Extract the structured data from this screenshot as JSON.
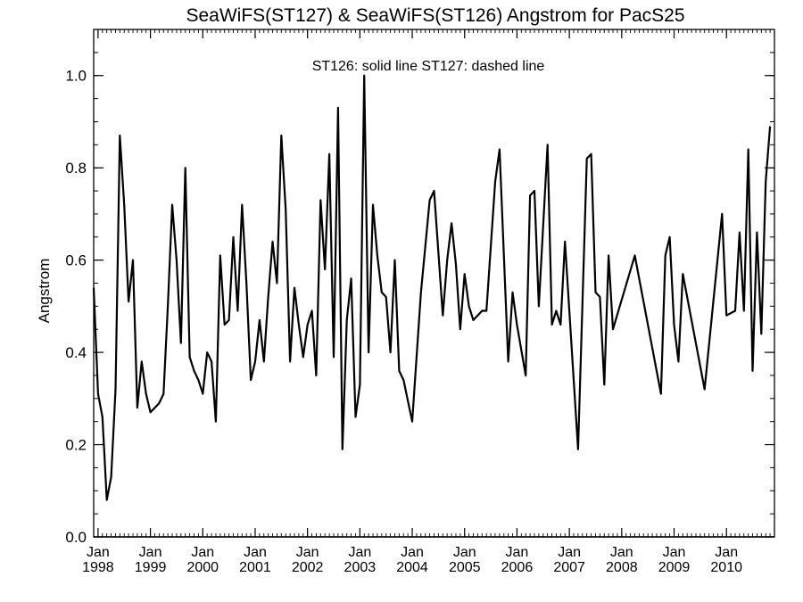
{
  "chart_data": {
    "type": "line",
    "title": "SeaWiFS(ST127) & SeaWiFS(ST126)  Angstrom for PacS25",
    "annotation": "ST126: solid line   ST127: dashed line",
    "xlabel": "",
    "ylabel": "Angstrom",
    "ylim": [
      0.0,
      1.1
    ],
    "y_ticks": [
      "0.0",
      "0.2",
      "0.4",
      "0.6",
      "0.8",
      "1.0"
    ],
    "x_ticks": [
      {
        "month": "Jan",
        "year": "1998"
      },
      {
        "month": "Jan",
        "year": "1999"
      },
      {
        "month": "Jan",
        "year": "2000"
      },
      {
        "month": "Jan",
        "year": "2001"
      },
      {
        "month": "Jan",
        "year": "2002"
      },
      {
        "month": "Jan",
        "year": "2003"
      },
      {
        "month": "Jan",
        "year": "2004"
      },
      {
        "month": "Jan",
        "year": "2005"
      },
      {
        "month": "Jan",
        "year": "2006"
      },
      {
        "month": "Jan",
        "year": "2007"
      },
      {
        "month": "Jan",
        "year": "2008"
      },
      {
        "month": "Jan",
        "year": "2009"
      },
      {
        "month": "Jan",
        "year": "2010"
      }
    ],
    "grid": false,
    "series": [
      {
        "name": "ST126",
        "style": "solid",
        "color": "#000000",
        "points": [
          [
            "1997-12-01",
            0.54
          ],
          [
            "1998-01-01",
            0.31
          ],
          [
            "1998-02-01",
            0.26
          ],
          [
            "1998-03-01",
            0.08
          ],
          [
            "1998-04-01",
            0.13
          ],
          [
            "1998-05-01",
            0.32
          ],
          [
            "1998-06-01",
            0.87
          ],
          [
            "1998-07-01",
            0.72
          ],
          [
            "1998-08-01",
            0.51
          ],
          [
            "1998-09-01",
            0.6
          ],
          [
            "1998-10-01",
            0.28
          ],
          [
            "1998-11-01",
            0.38
          ],
          [
            "1998-12-01",
            0.31
          ],
          [
            "1999-01-01",
            0.27
          ],
          [
            "1999-02-01",
            0.28
          ],
          [
            "1999-03-01",
            0.29
          ],
          [
            "1999-04-01",
            0.31
          ],
          [
            "1999-05-01",
            0.5
          ],
          [
            "1999-06-01",
            0.72
          ],
          [
            "1999-07-01",
            0.6
          ],
          [
            "1999-08-01",
            0.42
          ],
          [
            "1999-09-01",
            0.8
          ],
          [
            "1999-10-01",
            0.39
          ],
          [
            "1999-11-01",
            0.36
          ],
          [
            "1999-12-01",
            0.34
          ],
          [
            "2000-01-01",
            0.31
          ],
          [
            "2000-02-01",
            0.4
          ],
          [
            "2000-03-01",
            0.38
          ],
          [
            "2000-04-01",
            0.25
          ],
          [
            "2000-05-01",
            0.61
          ],
          [
            "2000-06-01",
            0.46
          ],
          [
            "2000-07-01",
            0.47
          ],
          [
            "2000-08-01",
            0.65
          ],
          [
            "2000-09-01",
            0.49
          ],
          [
            "2000-10-01",
            0.72
          ],
          [
            "2000-11-01",
            0.55
          ],
          [
            "2000-12-01",
            0.34
          ],
          [
            "2001-01-01",
            0.38
          ],
          [
            "2001-02-01",
            0.47
          ],
          [
            "2001-03-01",
            0.38
          ],
          [
            "2001-04-01",
            0.52
          ],
          [
            "2001-05-01",
            0.64
          ],
          [
            "2001-06-01",
            0.55
          ],
          [
            "2001-07-01",
            0.87
          ],
          [
            "2001-08-01",
            0.71
          ],
          [
            "2001-09-01",
            0.38
          ],
          [
            "2001-10-01",
            0.54
          ],
          [
            "2001-11-01",
            0.46
          ],
          [
            "2001-12-01",
            0.39
          ],
          [
            "2002-01-01",
            0.46
          ],
          [
            "2002-02-01",
            0.49
          ],
          [
            "2002-03-01",
            0.35
          ],
          [
            "2002-04-01",
            0.73
          ],
          [
            "2002-05-01",
            0.58
          ],
          [
            "2002-06-01",
            0.83
          ],
          [
            "2002-07-01",
            0.39
          ],
          [
            "2002-08-01",
            0.93
          ],
          [
            "2002-09-01",
            0.19
          ],
          [
            "2002-10-01",
            0.47
          ],
          [
            "2002-11-01",
            0.56
          ],
          [
            "2002-12-01",
            0.26
          ],
          [
            "2003-01-01",
            0.33
          ],
          [
            "2003-02-01",
            1.0
          ],
          [
            "2003-03-01",
            0.4
          ],
          [
            "2003-04-01",
            0.72
          ],
          [
            "2003-05-01",
            0.61
          ],
          [
            "2003-06-01",
            0.53
          ],
          [
            "2003-07-01",
            0.52
          ],
          [
            "2003-08-01",
            0.4
          ],
          [
            "2003-09-01",
            0.6
          ],
          [
            "2003-10-01",
            0.36
          ],
          [
            "2003-11-01",
            0.34
          ],
          [
            "2004-01-01",
            0.25
          ],
          [
            "2004-03-01",
            0.53
          ],
          [
            "2004-05-01",
            0.73
          ],
          [
            "2004-06-01",
            0.75
          ],
          [
            "2004-08-01",
            0.48
          ],
          [
            "2004-09-01",
            0.6
          ],
          [
            "2004-10-01",
            0.68
          ],
          [
            "2004-11-01",
            0.59
          ],
          [
            "2004-12-01",
            0.45
          ],
          [
            "2005-01-01",
            0.57
          ],
          [
            "2005-02-01",
            0.5
          ],
          [
            "2005-03-01",
            0.47
          ],
          [
            "2005-05-01",
            0.49
          ],
          [
            "2005-06-01",
            0.49
          ],
          [
            "2005-08-01",
            0.77
          ],
          [
            "2005-09-01",
            0.84
          ],
          [
            "2005-11-01",
            0.38
          ],
          [
            "2005-12-01",
            0.53
          ],
          [
            "2006-01-01",
            0.46
          ],
          [
            "2006-03-01",
            0.35
          ],
          [
            "2006-04-01",
            0.74
          ],
          [
            "2006-05-01",
            0.75
          ],
          [
            "2006-06-01",
            0.5
          ],
          [
            "2006-08-01",
            0.85
          ],
          [
            "2006-09-01",
            0.46
          ],
          [
            "2006-10-01",
            0.49
          ],
          [
            "2006-11-01",
            0.46
          ],
          [
            "2006-12-01",
            0.64
          ],
          [
            "2007-03-01",
            0.19
          ],
          [
            "2007-05-01",
            0.82
          ],
          [
            "2007-06-01",
            0.83
          ],
          [
            "2007-07-01",
            0.53
          ],
          [
            "2007-08-01",
            0.52
          ],
          [
            "2007-09-01",
            0.33
          ],
          [
            "2007-10-01",
            0.61
          ],
          [
            "2007-11-01",
            0.45
          ],
          [
            "2008-04-01",
            0.61
          ],
          [
            "2008-10-01",
            0.31
          ],
          [
            "2008-11-01",
            0.61
          ],
          [
            "2008-12-01",
            0.65
          ],
          [
            "2009-01-01",
            0.46
          ],
          [
            "2009-02-01",
            0.38
          ],
          [
            "2009-03-01",
            0.57
          ],
          [
            "2009-08-01",
            0.32
          ],
          [
            "2009-12-01",
            0.7
          ],
          [
            "2010-01-01",
            0.48
          ],
          [
            "2010-03-01",
            0.49
          ],
          [
            "2010-04-01",
            0.66
          ],
          [
            "2010-05-01",
            0.49
          ],
          [
            "2010-06-01",
            0.84
          ],
          [
            "2010-07-01",
            0.36
          ],
          [
            "2010-08-01",
            0.66
          ],
          [
            "2010-09-01",
            0.44
          ],
          [
            "2010-10-01",
            0.77
          ],
          [
            "2010-11-01",
            0.89
          ]
        ]
      }
    ]
  }
}
